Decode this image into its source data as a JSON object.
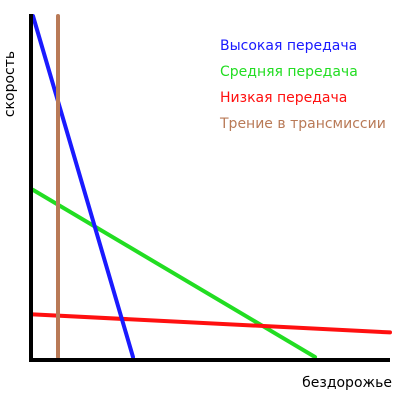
{
  "chart_data": {
    "type": "line",
    "xlabel": "бездорожье",
    "ylabel": "скорость",
    "xlim": [
      0,
      100
    ],
    "ylim": [
      0,
      100
    ],
    "grid": false,
    "legend_position": "top-right",
    "series": [
      {
        "name": "Высокая передача",
        "color": "#1a1aff",
        "points": [
          [
            0,
            100
          ],
          [
            28,
            0
          ]
        ]
      },
      {
        "name": "Средняя передача",
        "color": "#22dd22",
        "points": [
          [
            0,
            49
          ],
          [
            79,
            0
          ]
        ]
      },
      {
        "name": "Низкая передача",
        "color": "#ff1010",
        "points": [
          [
            0,
            12.5
          ],
          [
            100,
            7.2
          ]
        ]
      },
      {
        "name": "Трение в трансмиссии",
        "color": "#b97a57",
        "points": [
          [
            7,
            0
          ],
          [
            7,
            100
          ]
        ]
      }
    ]
  }
}
